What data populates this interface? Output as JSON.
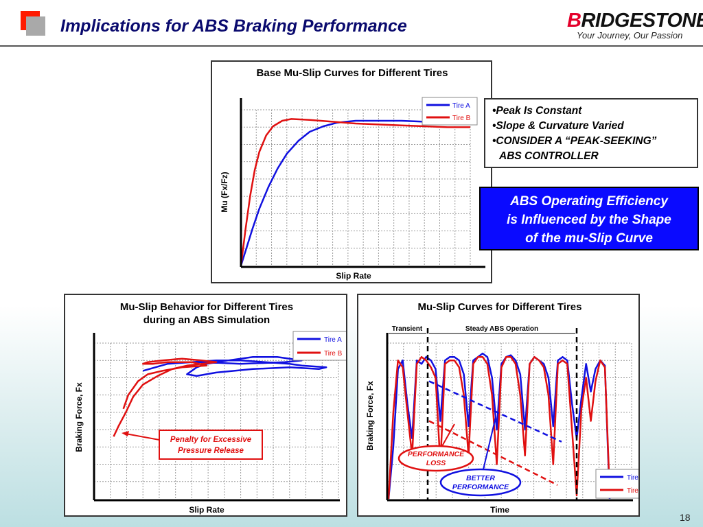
{
  "slide": {
    "title": "Implications for ABS Braking Performance",
    "brand": "BRIDGESTONE",
    "brand_first_letter": "B",
    "brand_rest": "RIDGESTONE",
    "tagline": "Your Journey, Our Passion",
    "page_number": "18",
    "accent_red": "#ff1a00",
    "accent_blue": "#0a0aff"
  },
  "bullets": [
    "•Peak Is Constant",
    "•Slope & Curvature Varied",
    "•CONSIDER A “PEAK-SEEKING”",
    "ABS CONTROLLER"
  ],
  "callout": {
    "line1": "ABS Operating Efficiency",
    "line2": "is Influenced by the Shape",
    "line3": "of the mu-Slip Curve"
  },
  "chart_data": [
    {
      "type": "line",
      "title": "Base Mu-Slip Curves for Different Tires",
      "xlabel": "Slip Rate",
      "ylabel": "Mu (Fx/Fz)",
      "grid": true,
      "legend": "top-right",
      "series": [
        {
          "name": "Tire A",
          "color": "#1010e0",
          "points": [
            [
              0,
              0
            ],
            [
              0.02,
              0.08
            ],
            [
              0.05,
              0.2
            ],
            [
              0.08,
              0.31
            ],
            [
              0.12,
              0.43
            ],
            [
              0.16,
              0.53
            ],
            [
              0.2,
              0.61
            ],
            [
              0.25,
              0.68
            ],
            [
              0.3,
              0.73
            ],
            [
              0.36,
              0.76
            ],
            [
              0.42,
              0.78
            ],
            [
              0.5,
              0.79
            ],
            [
              0.6,
              0.79
            ],
            [
              0.7,
              0.79
            ],
            [
              0.8,
              0.785
            ],
            [
              0.9,
              0.78
            ],
            [
              1.0,
              0.775
            ]
          ]
        },
        {
          "name": "Tire B",
          "color": "#e01010",
          "points": [
            [
              0,
              0
            ],
            [
              0.02,
              0.2
            ],
            [
              0.04,
              0.38
            ],
            [
              0.06,
              0.52
            ],
            [
              0.08,
              0.62
            ],
            [
              0.11,
              0.71
            ],
            [
              0.14,
              0.76
            ],
            [
              0.18,
              0.79
            ],
            [
              0.22,
              0.8
            ],
            [
              0.3,
              0.795
            ],
            [
              0.4,
              0.785
            ],
            [
              0.5,
              0.775
            ],
            [
              0.6,
              0.77
            ],
            [
              0.7,
              0.765
            ],
            [
              0.8,
              0.76
            ],
            [
              0.9,
              0.755
            ],
            [
              1.0,
              0.755
            ]
          ]
        }
      ]
    },
    {
      "type": "line",
      "title": "Mu-Slip Behavior for Different Tires during an ABS Simulation",
      "title_line1": "Mu-Slip Behavior for Different Tires",
      "title_line2": "during an ABS Simulation",
      "xlabel": "Slip Rate",
      "ylabel": "Braking Force, Fx",
      "grid": true,
      "legend": "top-right",
      "annotation": "Penalty for Excessive Pressure Release",
      "annotation_line1": "Penalty for Excessive",
      "annotation_line2": "Pressure Release",
      "series": [
        {
          "name": "Tire A",
          "color": "#1010e0",
          "points": [
            [
              0.2,
              0.74
            ],
            [
              0.3,
              0.78
            ],
            [
              0.4,
              0.79
            ],
            [
              0.5,
              0.8
            ],
            [
              0.6,
              0.8
            ],
            [
              0.7,
              0.79
            ],
            [
              0.8,
              0.78
            ],
            [
              0.85,
              0.77
            ],
            [
              0.95,
              0.76
            ],
            [
              0.92,
              0.75
            ],
            [
              0.8,
              0.76
            ],
            [
              0.65,
              0.75
            ],
            [
              0.5,
              0.73
            ],
            [
              0.42,
              0.71
            ],
            [
              0.38,
              0.72
            ],
            [
              0.42,
              0.76
            ],
            [
              0.46,
              0.78
            ],
            [
              0.55,
              0.8
            ],
            [
              0.65,
              0.82
            ],
            [
              0.75,
              0.82
            ],
            [
              0.85,
              0.8
            ],
            [
              0.78,
              0.79
            ],
            [
              0.6,
              0.78
            ],
            [
              0.45,
              0.79
            ],
            [
              0.4,
              0.79
            ]
          ]
        },
        {
          "name": "Tire B",
          "color": "#e01010",
          "points": [
            [
              0.08,
              0.36
            ],
            [
              0.1,
              0.42
            ],
            [
              0.13,
              0.5
            ],
            [
              0.16,
              0.59
            ],
            [
              0.2,
              0.66
            ],
            [
              0.26,
              0.71
            ],
            [
              0.32,
              0.75
            ],
            [
              0.38,
              0.77
            ],
            [
              0.44,
              0.78
            ],
            [
              0.5,
              0.79
            ],
            [
              0.44,
              0.8
            ],
            [
              0.36,
              0.81
            ],
            [
              0.28,
              0.8
            ],
            [
              0.22,
              0.79
            ],
            [
              0.2,
              0.78
            ],
            [
              0.24,
              0.78
            ],
            [
              0.3,
              0.79
            ],
            [
              0.4,
              0.79
            ],
            [
              0.46,
              0.77
            ],
            [
              0.36,
              0.76
            ],
            [
              0.28,
              0.74
            ],
            [
              0.22,
              0.72
            ],
            [
              0.18,
              0.68
            ],
            [
              0.14,
              0.6
            ],
            [
              0.12,
              0.52
            ]
          ]
        }
      ]
    },
    {
      "type": "line",
      "title": "Mu-Slip Curves for Different Tires",
      "xlabel": "Time",
      "ylabel": "Braking Force, Fx",
      "grid": true,
      "legend": "bottom-right",
      "phase_labels": [
        "Transient",
        "Steady ABS Operation"
      ],
      "annotations": [
        "PERFORMANCE LOSS",
        "BETTER PERFORMANCE"
      ],
      "annotation_perf_loss_line1": "PERFORMANCE",
      "annotation_perf_loss_line2": "LOSS",
      "annotation_better_line1": "BETTER",
      "annotation_better_line2": "PERFORMANCE",
      "series": [
        {
          "name": "Tire A",
          "color": "#1010e0",
          "values": [
            0,
            0.3,
            0.75,
            0.8,
            0.55,
            0.35,
            0.8,
            0.78,
            0.82,
            0.8,
            0.75,
            0.45,
            0.8,
            0.82,
            0.82,
            0.8,
            0.72,
            0.42,
            0.8,
            0.82,
            0.84,
            0.82,
            0.7,
            0.4,
            0.78,
            0.82,
            0.83,
            0.8,
            0.72,
            0.4,
            0.78,
            0.82,
            0.8,
            0.78,
            0.7,
            0.42,
            0.8,
            0.82,
            0.8,
            0.55,
            0.35,
            0.58,
            0.78,
            0.62,
            0.75,
            0.8,
            0.77,
            0
          ]
        },
        {
          "name": "Tire B",
          "color": "#e01010",
          "values": [
            0,
            0.5,
            0.8,
            0.76,
            0.5,
            0.25,
            0.78,
            0.82,
            0.8,
            0.76,
            0.7,
            0.2,
            0.78,
            0.8,
            0.8,
            0.76,
            0.6,
            0.25,
            0.78,
            0.82,
            0.82,
            0.78,
            0.6,
            0.2,
            0.76,
            0.82,
            0.82,
            0.78,
            0.6,
            0.25,
            0.78,
            0.82,
            0.8,
            0.76,
            0.6,
            0.2,
            0.78,
            0.8,
            0.78,
            0.4,
            0.02,
            0.52,
            0.7,
            0.45,
            0.68,
            0.8,
            0.76,
            0.05
          ]
        }
      ],
      "trend_tire_a": {
        "name": "Tire A",
        "from": 0.68,
        "to": 0.33
      },
      "trend_tire_b": {
        "name": "Tire B",
        "from": 0.45,
        "to": 0.08
      }
    }
  ]
}
